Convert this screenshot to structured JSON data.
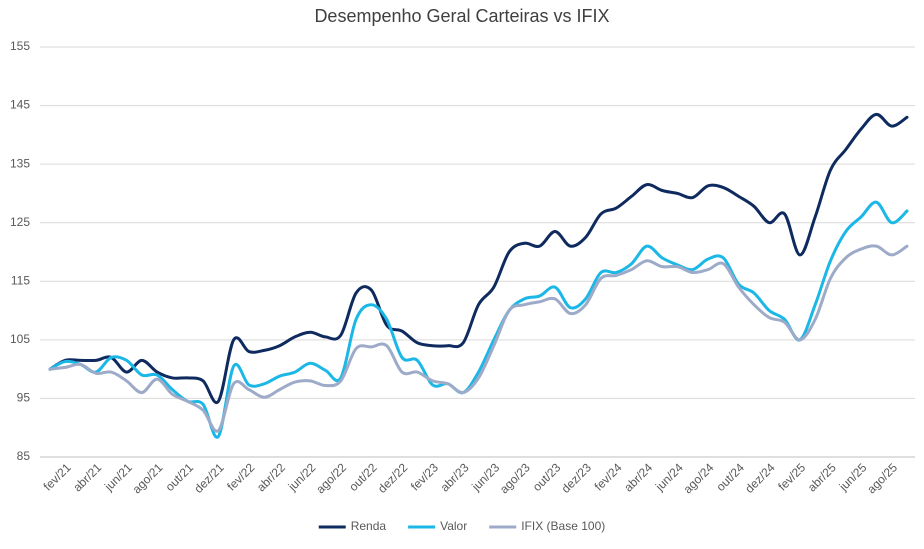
{
  "chart_data": {
    "type": "line",
    "title": "Desempenho Geral Carteiras vs IFIX",
    "categories": [
      null,
      "fev/21",
      null,
      "abr/21",
      null,
      "jun/21",
      null,
      "ago/21",
      null,
      "out/21",
      null,
      "dez/21",
      null,
      "fev/22",
      null,
      "abr/22",
      null,
      "jun/22",
      null,
      "ago/22",
      null,
      "out/22",
      null,
      "dez/22",
      null,
      "fev/23",
      null,
      "abr/23",
      null,
      "jun/23",
      null,
      "ago/23",
      null,
      "out/23",
      null,
      "dez/23",
      null,
      "fev/24",
      null,
      "abr/24",
      null,
      "jun/24",
      null,
      "ago/24",
      null,
      "out/24",
      null,
      "dez/24",
      null,
      "fev/25",
      null,
      "abr/25",
      null,
      "jun/25",
      null,
      "ago/25",
      null
    ],
    "series": [
      {
        "name": "Renda",
        "color": "#0e2a5e",
        "values": [
          100,
          101.5,
          101.5,
          101.5,
          102,
          99.5,
          101.5,
          99.5,
          98.5,
          98.5,
          98,
          94.5,
          105,
          103,
          103.2,
          104,
          105.5,
          106.3,
          105.5,
          105.8,
          113,
          113.5,
          107.5,
          106.5,
          104.5,
          104,
          104,
          104.5,
          111,
          114,
          120,
          121.5,
          121,
          123.5,
          121,
          122.5,
          126.5,
          127.5,
          129.5,
          131.5,
          130.5,
          130,
          129.3,
          131.3,
          131,
          129.5,
          127.8,
          125,
          126.5,
          119.5,
          126,
          134,
          137.5,
          141,
          143.5,
          141.5,
          143
        ]
      },
      {
        "name": "Valor",
        "color": "#1bb7e6",
        "values": [
          100,
          101.3,
          100.8,
          99.5,
          102,
          101.5,
          99,
          99,
          96.5,
          94.5,
          94,
          88.5,
          100.5,
          97.3,
          97.5,
          98.8,
          99.5,
          101,
          99.8,
          98.5,
          108.5,
          111,
          108.5,
          102,
          101.5,
          97.3,
          97.5,
          96,
          99.5,
          105,
          110,
          112,
          112.5,
          114,
          110.5,
          112,
          116.5,
          116.5,
          118,
          121,
          119,
          117.8,
          117,
          118.8,
          119,
          114.5,
          113,
          110,
          108.5,
          105,
          111,
          118.5,
          123.5,
          126,
          128.5,
          125,
          127
        ]
      },
      {
        "name": "IFIX (Base 100)",
        "color": "#9dabc9",
        "values": [
          100,
          100.3,
          100.8,
          99.3,
          99.5,
          98,
          96,
          98.3,
          95.7,
          94.5,
          93,
          89.5,
          97.5,
          96.5,
          95.2,
          96.5,
          97.8,
          98,
          97.2,
          98,
          103.5,
          103.8,
          104,
          99.5,
          99.5,
          98,
          97.5,
          96,
          98.5,
          104,
          110,
          111,
          111.5,
          112,
          109.5,
          111,
          115.5,
          116,
          117,
          118.5,
          117.5,
          117.5,
          116.5,
          117,
          118,
          114,
          111,
          108.8,
          108,
          105,
          108.5,
          115.5,
          119,
          120.5,
          121,
          119.5,
          121
        ]
      }
    ],
    "ylim": [
      85,
      155
    ],
    "yticks": [
      85,
      95,
      105,
      115,
      125,
      135,
      145,
      155
    ],
    "grid": true,
    "legend": "bottom"
  }
}
